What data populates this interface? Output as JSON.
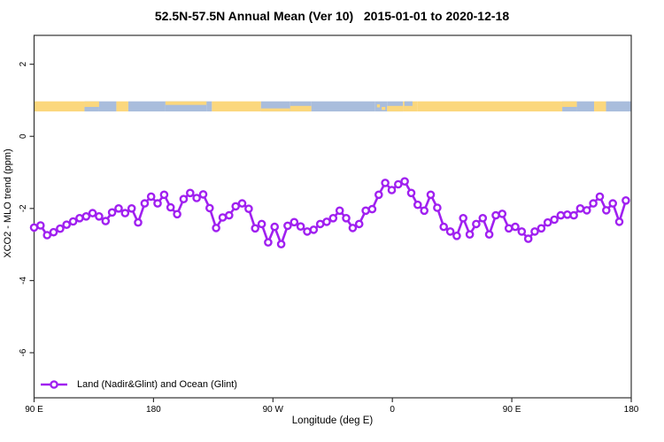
{
  "page": {
    "background": "#ffffff"
  },
  "chart_data": {
    "type": "line",
    "title": "52.5N-57.5N Annual Mean (Ver 10)   2015-01-01 to 2020-12-18",
    "xlabel": "Longitude (deg E)",
    "ylabel": "XCO2 - MLO trend (ppm)",
    "grid": false,
    "x_axis": {
      "lim": [
        90,
        540
      ],
      "ticks": [
        90,
        180,
        270,
        360,
        450,
        540
      ],
      "tick_labels": [
        "90 E",
        "180",
        "90 W",
        "0",
        "90 E",
        "180"
      ]
    },
    "y_axis": {
      "lim": [
        -7.25,
        2.8
      ],
      "ticks": [
        2,
        0,
        -2,
        -4,
        -6
      ],
      "tick_labels": [
        "2",
        "0",
        "-2",
        "-4",
        "-6"
      ]
    },
    "legend": {
      "position": "bottom-left",
      "entries": [
        {
          "label": "Land (Nadir&Glint) and Ocean (Glint)",
          "color": "#A020F0",
          "marker": "open-circle"
        }
      ]
    },
    "series": [
      {
        "name": "Land (Nadir&Glint) and Ocean (Glint)",
        "color": "#A020F0",
        "marker": "open-circle",
        "lon_start_deg_e": 90,
        "lon_step_deg": 4.9,
        "values": [
          -2.53,
          -2.47,
          -2.74,
          -2.66,
          -2.56,
          -2.45,
          -2.36,
          -2.27,
          -2.22,
          -2.13,
          -2.22,
          -2.35,
          -2.11,
          -2.0,
          -2.13,
          -2.0,
          -2.39,
          -1.86,
          -1.67,
          -1.86,
          -1.62,
          -1.97,
          -2.16,
          -1.74,
          -1.57,
          -1.71,
          -1.61,
          -1.99,
          -2.54,
          -2.25,
          -2.19,
          -1.94,
          -1.86,
          -2.01,
          -2.55,
          -2.43,
          -2.94,
          -2.51,
          -2.99,
          -2.48,
          -2.38,
          -2.5,
          -2.64,
          -2.59,
          -2.43,
          -2.37,
          -2.27,
          -2.06,
          -2.27,
          -2.54,
          -2.43,
          -2.06,
          -2.02,
          -1.62,
          -1.29,
          -1.49,
          -1.33,
          -1.25,
          -1.57,
          -1.9,
          -2.06,
          -1.62,
          -1.98,
          -2.51,
          -2.64,
          -2.76,
          -2.27,
          -2.72,
          -2.43,
          -2.27,
          -2.72,
          -2.19,
          -2.15,
          -2.55,
          -2.51,
          -2.64,
          -2.84,
          -2.64,
          -2.55,
          -2.39,
          -2.31,
          -2.19,
          -2.17,
          -2.19,
          -2.0,
          -2.05,
          -1.86,
          -1.67,
          -2.05,
          -1.86,
          -2.37,
          -1.78
        ]
      }
    ],
    "map_strip": {
      "description": "land/ocean map band for latitude 52.5N-57.5N",
      "y_from": 0.69,
      "y_to": 0.97,
      "land_color": "#FBD77D",
      "ocean_color": "#A9BDDC",
      "segments": [
        {
          "from": 90,
          "to": 128,
          "cover": "land"
        },
        {
          "from": 128,
          "to": 139,
          "cover": "coast_top"
        },
        {
          "from": 139,
          "to": 152,
          "cover": "ocean"
        },
        {
          "from": 152,
          "to": 161,
          "cover": "land"
        },
        {
          "from": 161,
          "to": 189,
          "cover": "ocean"
        },
        {
          "from": 189,
          "to": 220,
          "cover": "coast_thin_top"
        },
        {
          "from": 220,
          "to": 224,
          "cover": "ocean"
        },
        {
          "from": 224,
          "to": 261,
          "cover": "land"
        },
        {
          "from": 261,
          "to": 283,
          "cover": "coast_bottom_thin"
        },
        {
          "from": 283,
          "to": 299,
          "cover": "coast_bottom"
        },
        {
          "from": 299,
          "to": 347,
          "cover": "ocean"
        },
        {
          "from": 347,
          "to": 356,
          "cover": "isles"
        },
        {
          "from": 356,
          "to": 368,
          "cover": "coast_bottom"
        },
        {
          "from": 368,
          "to": 379,
          "cover": "baltic"
        },
        {
          "from": 379,
          "to": 488,
          "cover": "land"
        },
        {
          "from": 488,
          "to": 499,
          "cover": "coast_top"
        },
        {
          "from": 499,
          "to": 512,
          "cover": "ocean"
        },
        {
          "from": 512,
          "to": 521,
          "cover": "land"
        },
        {
          "from": 521,
          "to": 540,
          "cover": "ocean"
        }
      ]
    }
  }
}
